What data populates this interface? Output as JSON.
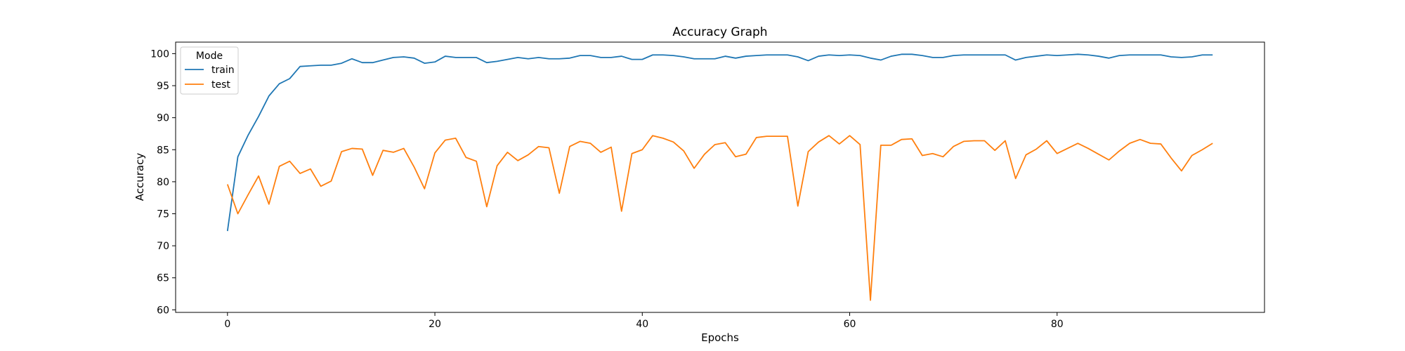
{
  "chart_data": {
    "type": "line",
    "title": "Accuracy Graph",
    "xlabel": "Epochs",
    "ylabel": "Accuracy",
    "xlim": [
      -5,
      100
    ],
    "ylim": [
      59.6,
      101.8
    ],
    "xticks": [
      0,
      20,
      40,
      60,
      80
    ],
    "yticks": [
      60,
      65,
      70,
      75,
      80,
      85,
      90,
      95,
      100
    ],
    "grid": false,
    "legend": {
      "title": "Mode",
      "placement": "top-left"
    },
    "x": [
      0,
      1,
      2,
      3,
      4,
      5,
      6,
      7,
      8,
      9,
      10,
      11,
      12,
      13,
      14,
      15,
      16,
      17,
      18,
      19,
      20,
      21,
      22,
      23,
      24,
      25,
      26,
      27,
      28,
      29,
      30,
      31,
      32,
      33,
      34,
      35,
      36,
      37,
      38,
      39,
      40,
      41,
      42,
      43,
      44,
      45,
      46,
      47,
      48,
      49,
      50,
      51,
      52,
      53,
      54,
      55,
      56,
      57,
      58,
      59,
      60,
      61,
      62,
      63,
      64,
      65,
      66,
      67,
      68,
      69,
      70,
      71,
      72,
      73,
      74,
      75,
      76,
      77,
      78,
      79,
      80,
      81,
      82,
      83,
      84,
      85,
      86,
      87,
      88,
      89,
      90,
      91,
      92,
      93,
      94,
      95
    ],
    "series": [
      {
        "name": "train",
        "color": "#1f77b4",
        "values": [
          72.3,
          83.9,
          87.3,
          90.2,
          93.4,
          95.3,
          96.1,
          98.0,
          98.1,
          98.2,
          98.2,
          98.5,
          99.2,
          98.6,
          98.6,
          99.0,
          99.4,
          99.5,
          99.3,
          98.5,
          98.7,
          99.6,
          99.4,
          99.4,
          99.4,
          98.6,
          98.8,
          99.1,
          99.4,
          99.2,
          99.4,
          99.2,
          99.2,
          99.3,
          99.7,
          99.7,
          99.4,
          99.4,
          99.6,
          99.1,
          99.1,
          99.8,
          99.8,
          99.7,
          99.5,
          99.2,
          99.2,
          99.2,
          99.6,
          99.3,
          99.6,
          99.7,
          99.8,
          99.8,
          99.8,
          99.5,
          98.9,
          99.6,
          99.8,
          99.7,
          99.8,
          99.7,
          99.3,
          99.0,
          99.6,
          99.9,
          99.9,
          99.7,
          99.4,
          99.4,
          99.7,
          99.8,
          99.8,
          99.8,
          99.8,
          99.8,
          99.0,
          99.4,
          99.6,
          99.8,
          99.7,
          99.8,
          99.9,
          99.8,
          99.6,
          99.3,
          99.7,
          99.8,
          99.8,
          99.8,
          99.8,
          99.5,
          99.4,
          99.5,
          99.8,
          99.8
        ]
      },
      {
        "name": "test",
        "color": "#ff7f0e",
        "values": [
          79.6,
          75.0,
          78.0,
          80.9,
          76.5,
          82.4,
          83.2,
          81.3,
          82.0,
          79.3,
          80.1,
          84.7,
          85.2,
          85.1,
          81.0,
          84.9,
          84.6,
          85.2,
          82.3,
          78.9,
          84.5,
          86.5,
          86.8,
          83.8,
          83.2,
          76.1,
          82.5,
          84.6,
          83.3,
          84.2,
          85.5,
          85.3,
          78.2,
          85.5,
          86.3,
          86.0,
          84.6,
          85.4,
          75.4,
          84.4,
          85.0,
          87.2,
          86.8,
          86.2,
          84.8,
          82.1,
          84.3,
          85.8,
          86.1,
          83.9,
          84.3,
          86.9,
          87.1,
          87.1,
          87.1,
          76.2,
          84.7,
          86.2,
          87.2,
          85.9,
          87.2,
          85.8,
          61.5,
          85.7,
          85.7,
          86.6,
          86.7,
          84.1,
          84.4,
          83.9,
          85.5,
          86.3,
          86.4,
          86.4,
          84.9,
          86.4,
          80.5,
          84.2,
          85.1,
          86.4,
          84.4,
          85.2,
          86.0,
          85.2,
          84.3,
          83.4,
          84.8,
          86.0,
          86.6,
          86.0,
          85.9,
          83.7,
          81.7,
          84.1,
          85.0,
          86.0
        ]
      }
    ]
  }
}
